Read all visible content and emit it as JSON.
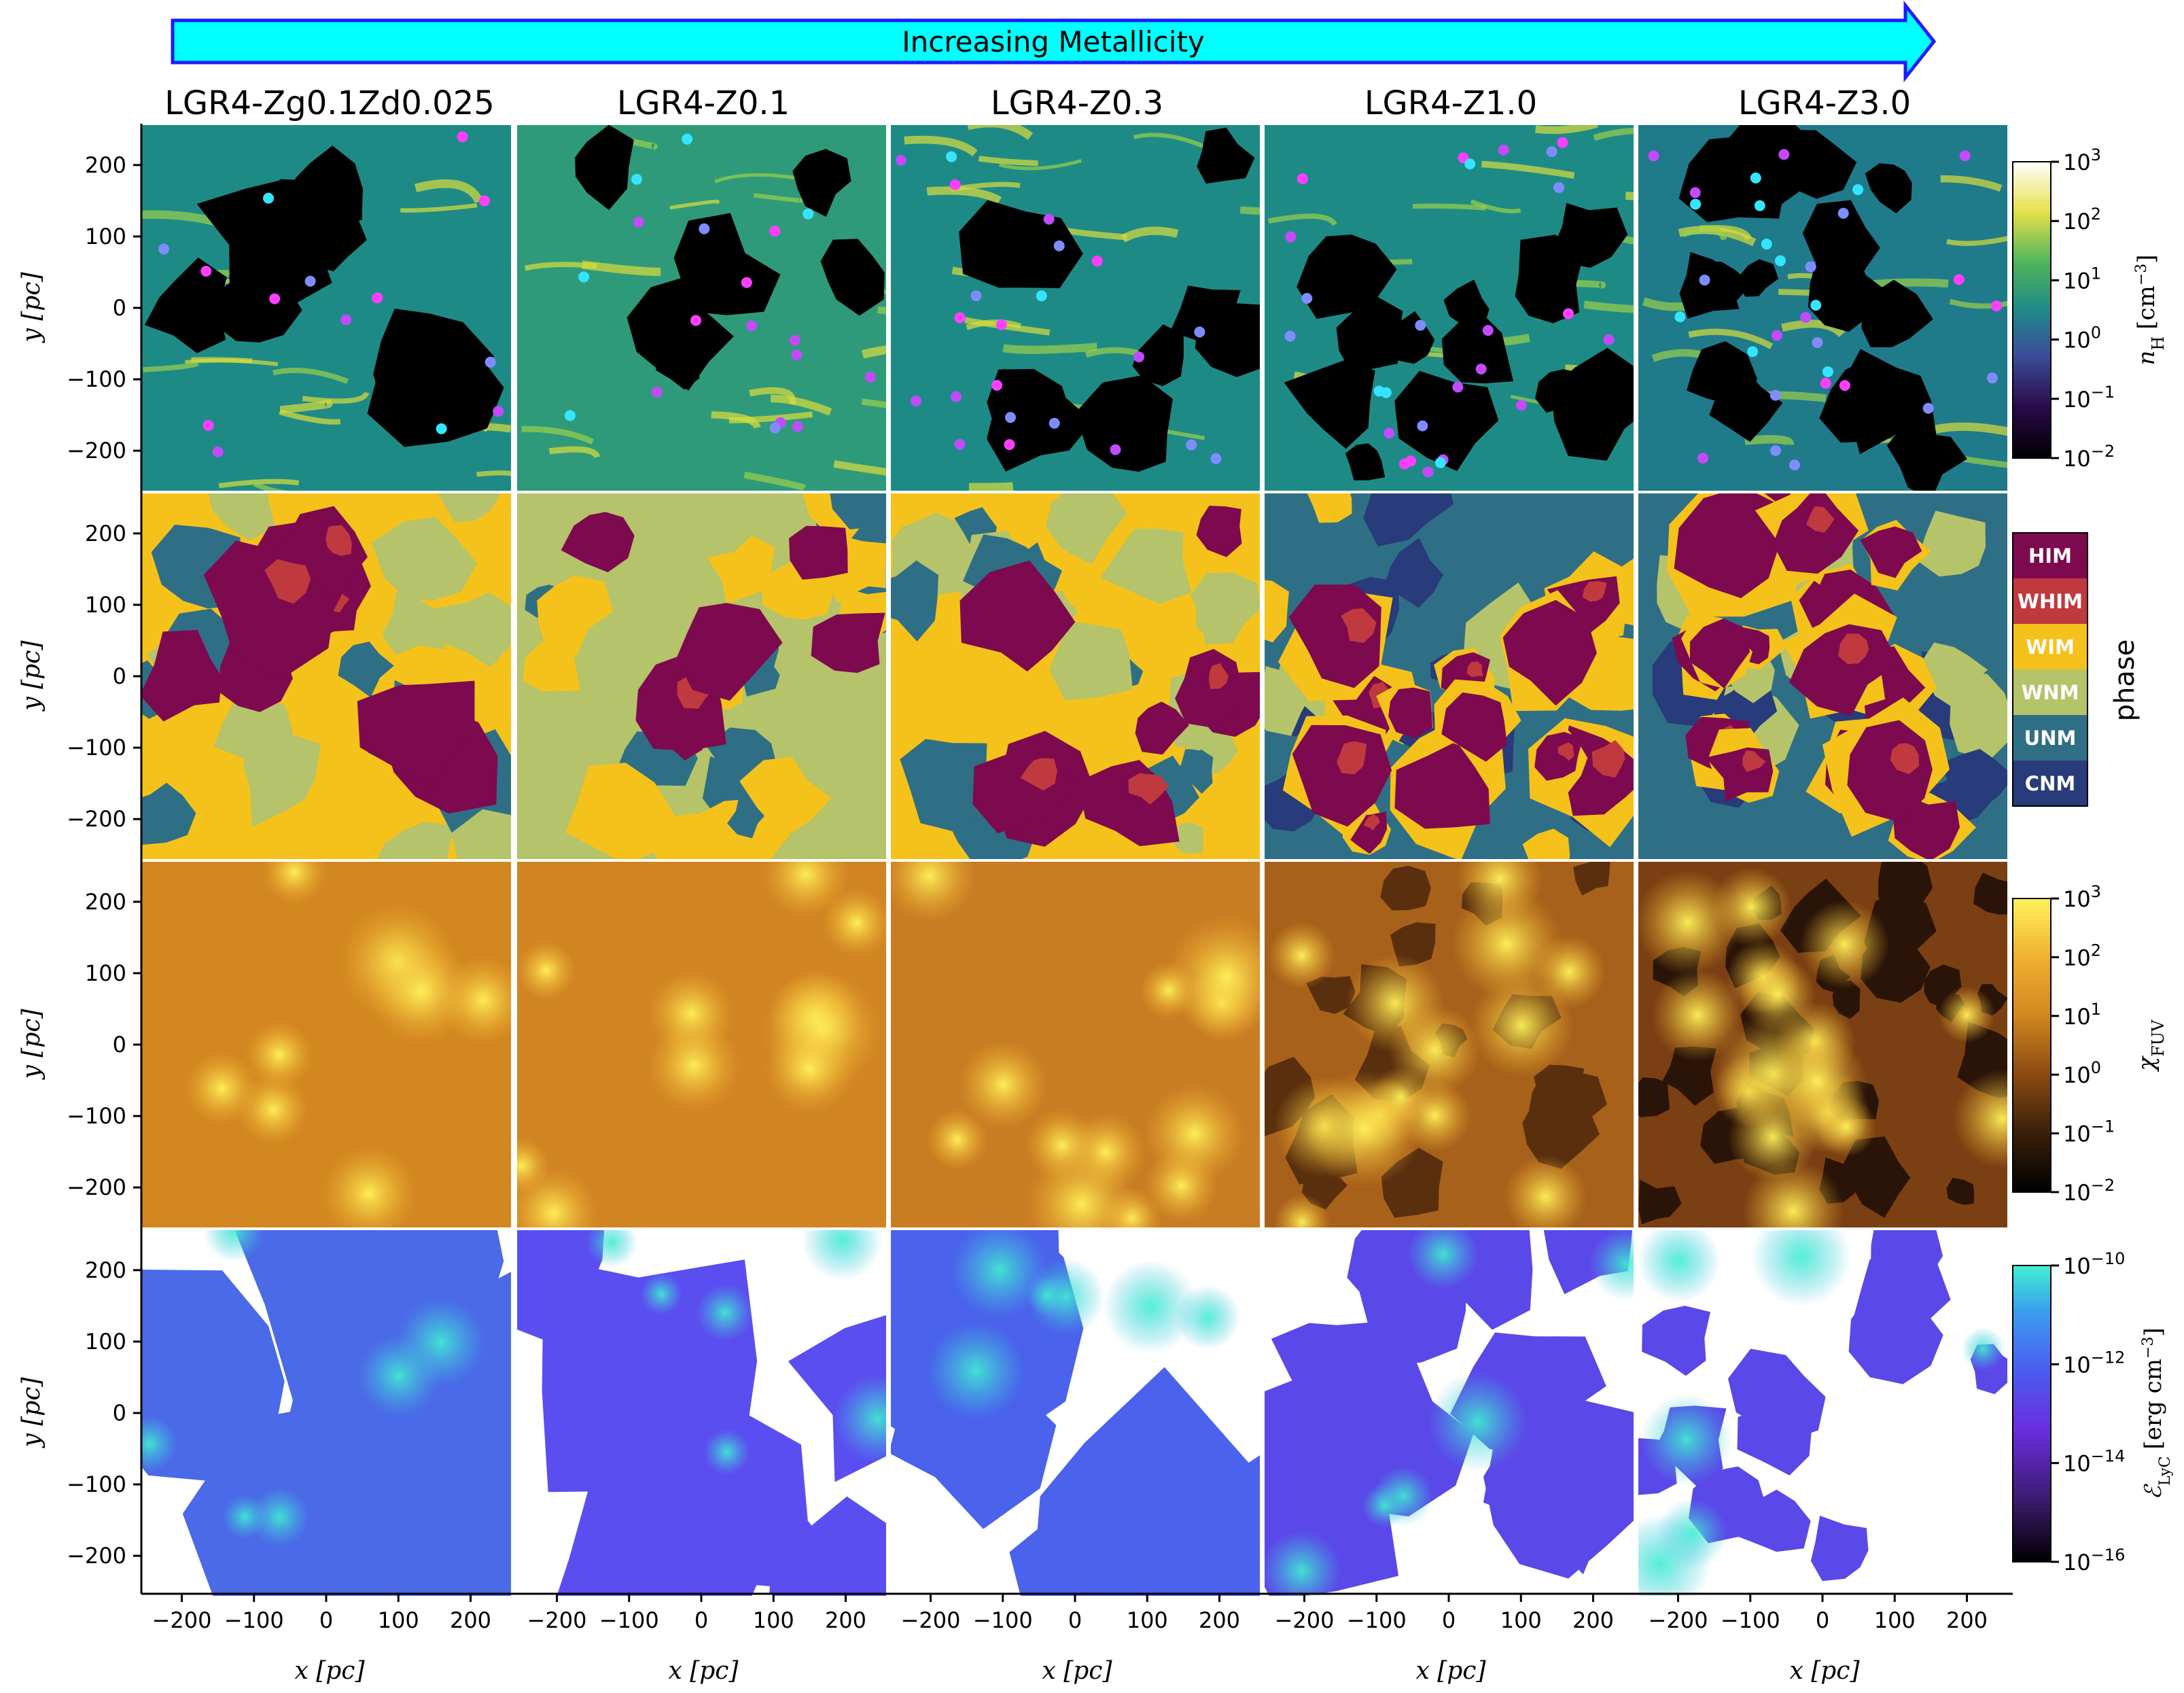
{
  "banner": {
    "text": "Increasing Metallicity",
    "fill": "#00ffff",
    "stroke": "#1a1aff"
  },
  "chart_data": {
    "type": "heatmap",
    "columns": [
      "LGR4-Zg0.1Zd0.025",
      "LGR4-Z0.1",
      "LGR4-Z0.3",
      "LGR4-Z1.0",
      "LGR4-Z3.0"
    ],
    "rows": [
      {
        "key": "density",
        "cbar_label": "n_H [cm^-3]",
        "cbar_ticks": [
          "10^3",
          "10^2",
          "10^1",
          "10^0",
          "10^-1",
          "10^-2"
        ],
        "range": [
          -2,
          3
        ]
      },
      {
        "key": "phase",
        "cbar_label": "phase",
        "categories": [
          "HIM",
          "WHIM",
          "WIM",
          "WNM",
          "UNM",
          "CNM"
        ]
      },
      {
        "key": "fuv",
        "cbar_label": "χ_FUV",
        "cbar_ticks": [
          "10^3",
          "10^2",
          "10^1",
          "10^0",
          "10^-1",
          "10^-2"
        ],
        "range": [
          -2,
          3
        ]
      },
      {
        "key": "lyc",
        "cbar_label": "E_LyC [erg cm^-3]",
        "cbar_ticks": [
          "10^-10",
          "10^-12",
          "10^-14",
          "10^-16"
        ],
        "range": [
          -16,
          -10
        ]
      }
    ],
    "xlabel": "x [pc]",
    "ylabel": "y [pc]",
    "xticks": [
      -200,
      -100,
      0,
      100,
      200
    ],
    "yticks": [
      200,
      100,
      0,
      -100,
      -200
    ],
    "xlim": [
      -256,
      256
    ],
    "ylim": [
      -256,
      256
    ],
    "phase_colors": {
      "HIM": "#7d0a4f",
      "WHIM": "#c0393e",
      "WIM": "#f5c21b",
      "WNM": "#b5c36a",
      "UNM": "#2f6f85",
      "CNM": "#283b7a"
    }
  },
  "labels": {
    "cbar_density_sym": "n",
    "cbar_density_sub": "H",
    "cbar_density_unit": "[cm",
    "cbar_density_unit_exp": "−3",
    "cbar_density_close": "]",
    "cbar_fuv_sym": "χ",
    "cbar_fuv_sub": "FUV",
    "cbar_lyc_sym": "ℰ",
    "cbar_lyc_sub": "LyC",
    "cbar_lyc_unit": "[erg cm",
    "cbar_lyc_unit_exp": "−3",
    "cbar_lyc_close": "]",
    "phase_label": "phase",
    "axis_x": "x [pc]",
    "axis_y": "y [pc]"
  },
  "colorbar_ticks": {
    "density": [
      {
        "base": "10",
        "exp": "3"
      },
      {
        "base": "10",
        "exp": "2"
      },
      {
        "base": "10",
        "exp": "1"
      },
      {
        "base": "10",
        "exp": "0"
      },
      {
        "base": "10",
        "exp": "−1"
      },
      {
        "base": "10",
        "exp": "−2"
      }
    ],
    "fuv": [
      {
        "base": "10",
        "exp": "3"
      },
      {
        "base": "10",
        "exp": "2"
      },
      {
        "base": "10",
        "exp": "1"
      },
      {
        "base": "10",
        "exp": "0"
      },
      {
        "base": "10",
        "exp": "−1"
      },
      {
        "base": "10",
        "exp": "−2"
      }
    ],
    "lyc": [
      {
        "base": "10",
        "exp": "−10"
      },
      {
        "base": "10",
        "exp": "−12"
      },
      {
        "base": "10",
        "exp": "−14"
      },
      {
        "base": "10",
        "exp": "−16"
      }
    ]
  },
  "tick_text": {
    "x": [
      "−200",
      "−100",
      "0",
      "100",
      "200"
    ],
    "y": [
      "200",
      "100",
      "0",
      "−100",
      "−200"
    ]
  },
  "colors": {
    "density_cmap": [
      "#000000",
      "#2a0a4a",
      "#3b4f9a",
      "#1f8a8a",
      "#4fb45a",
      "#e6e04a",
      "#ffffff"
    ],
    "fuv_cmap": [
      "#000000",
      "#3a1f0a",
      "#8b4a12",
      "#d2861f",
      "#f0b030",
      "#fff35a"
    ],
    "lyc_cmap": [
      "#000000",
      "#3a1a6a",
      "#6a2ee0",
      "#4a5ef0",
      "#3aa0f0",
      "#40f0d0"
    ]
  }
}
